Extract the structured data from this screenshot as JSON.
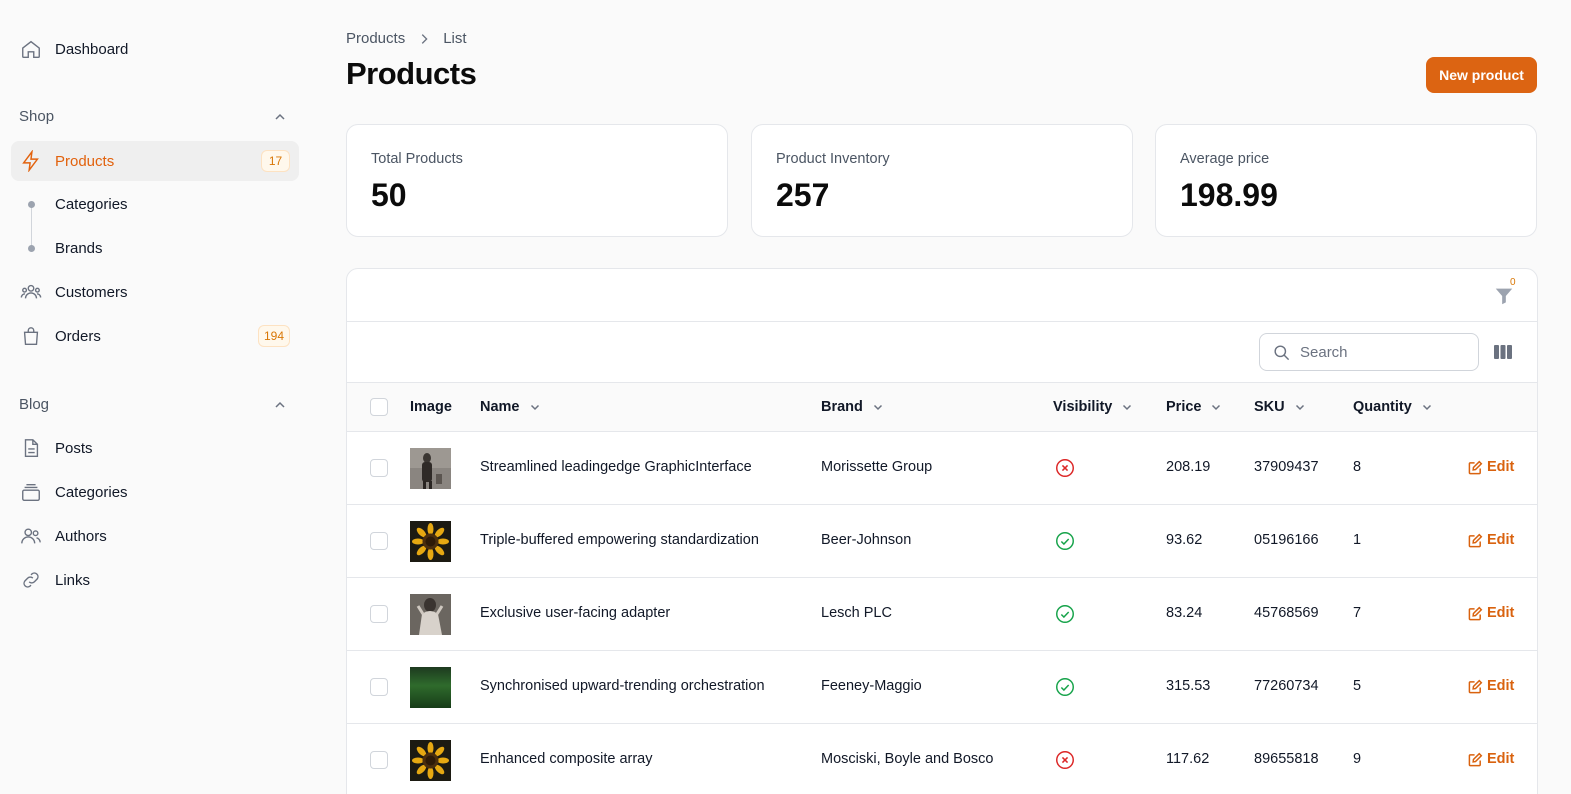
{
  "sidebar": {
    "dashboard": "Dashboard",
    "shop_group": "Shop",
    "products": {
      "label": "Products",
      "count": "17"
    },
    "categories": "Categories",
    "brands": "Brands",
    "customers": "Customers",
    "orders": {
      "label": "Orders",
      "count": "194"
    },
    "blog_group": "Blog",
    "posts": "Posts",
    "blog_categories": "Categories",
    "authors": "Authors",
    "links": "Links"
  },
  "header": {
    "breadcrumb": [
      "Products",
      "List"
    ],
    "title": "Products",
    "new_button": "New product"
  },
  "stats": [
    {
      "label": "Total Products",
      "value": "50"
    },
    {
      "label": "Product Inventory",
      "value": "257"
    },
    {
      "label": "Average price",
      "value": "198.99"
    }
  ],
  "table": {
    "filter_count": "0",
    "search_placeholder": "Search",
    "columns": [
      "Image",
      "Name",
      "Brand",
      "Visibility",
      "Price",
      "SKU",
      "Quantity"
    ],
    "edit_label": "Edit",
    "rows": [
      {
        "name": "Streamlined leadingedge GraphicInterface",
        "brand": "Morissette Group",
        "visible": false,
        "price": "208.19",
        "sku": "37909437",
        "quantity": "8",
        "image": "person-dark"
      },
      {
        "name": "Triple-buffered empowering standardization",
        "brand": "Beer-Johnson",
        "visible": true,
        "price": "93.62",
        "sku": "05196166",
        "quantity": "1",
        "image": "sunflower"
      },
      {
        "name": "Exclusive user-facing adapter",
        "brand": "Lesch PLC",
        "visible": true,
        "price": "83.24",
        "sku": "45768569",
        "quantity": "7",
        "image": "person-light"
      },
      {
        "name": "Synchronised upward-trending orchestration",
        "brand": "Feeney-Maggio",
        "visible": true,
        "price": "315.53",
        "sku": "77260734",
        "quantity": "5",
        "image": "grass"
      },
      {
        "name": "Enhanced composite array",
        "brand": "Mosciski, Boyle and Bosco",
        "visible": false,
        "price": "117.62",
        "sku": "89655818",
        "quantity": "9",
        "image": "sunflower"
      }
    ]
  },
  "colors": {
    "accent": "#dc6412",
    "success": "#16a34a",
    "danger": "#dc2626"
  }
}
